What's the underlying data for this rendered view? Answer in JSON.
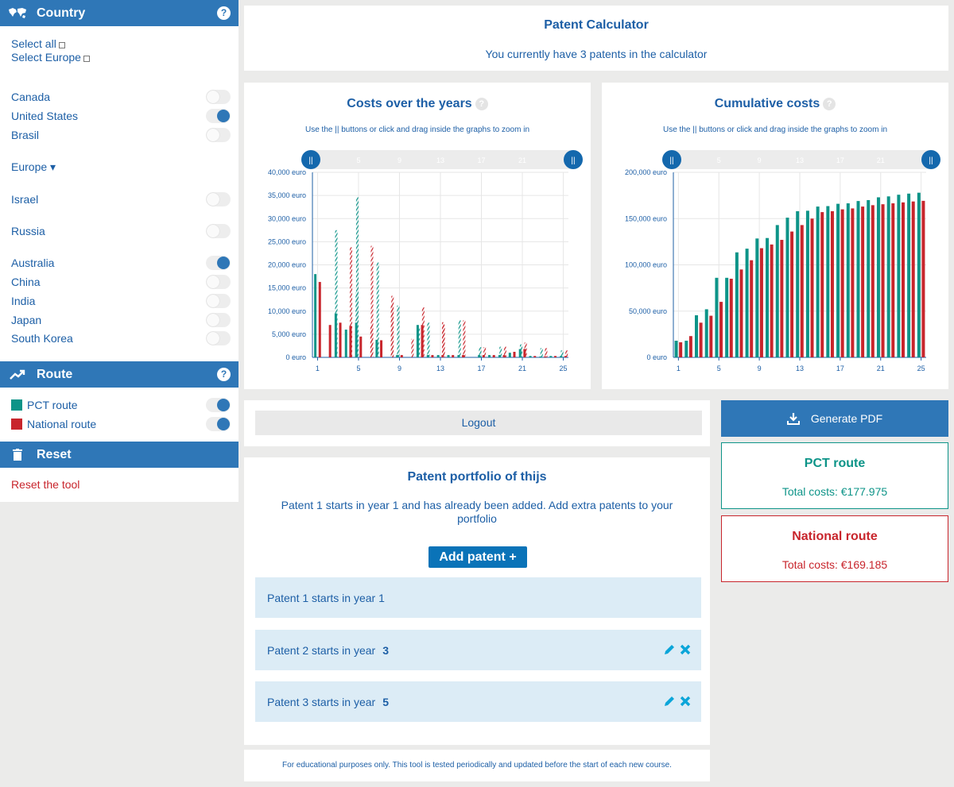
{
  "colors": {
    "accent": "#2f77b7",
    "pct": "#0d9488",
    "national": "#c8252c"
  },
  "sidebar": {
    "country_header": "Country",
    "select_all": "Select all",
    "select_europe": "Select Europe",
    "countries_a": [
      {
        "label": "Canada",
        "on": false
      },
      {
        "label": "United States",
        "on": true
      },
      {
        "label": "Brasil",
        "on": false
      }
    ],
    "europe": "Europe ▾",
    "israel": {
      "label": "Israel",
      "on": false
    },
    "russia": {
      "label": "Russia",
      "on": false
    },
    "countries_b": [
      {
        "label": "Australia",
        "on": true
      },
      {
        "label": "China",
        "on": false
      },
      {
        "label": "India",
        "on": false
      },
      {
        "label": "Japan",
        "on": false
      },
      {
        "label": "South Korea",
        "on": false
      }
    ],
    "route_header": "Route",
    "pct_route": "PCT route",
    "national_route": "National route",
    "reset_header": "Reset",
    "reset_link": "Reset the tool",
    "help": "?"
  },
  "header": {
    "title": "Patent Calculator",
    "subtitle": "You currently have 3 patents in the calculator"
  },
  "charts": {
    "hint": "Use the || buttons or click and drag inside the graphs to zoom in",
    "handle": "||"
  },
  "chart_data": [
    {
      "type": "bar",
      "title": "Costs over the years",
      "ylabel_unit": "euro",
      "ylim": [
        0,
        40000
      ],
      "y_ticks": [
        "0 euro",
        "5,000 euro",
        "10,000 euro",
        "15,000 euro",
        "20,000 euro",
        "25,000 euro",
        "30,000 euro",
        "35,000 euro",
        "40,000 euro"
      ],
      "x_ticks": [
        "1",
        "5",
        "9",
        "13",
        "17",
        "21",
        "25"
      ],
      "slider_ticks": [
        "5",
        "9",
        "13",
        "17",
        "21"
      ],
      "x": [
        1,
        2,
        3,
        4,
        5,
        6,
        7,
        8,
        9,
        10,
        11,
        12,
        13,
        14,
        15,
        16,
        17,
        18,
        19,
        20,
        21,
        22,
        23,
        24,
        25
      ],
      "series": [
        {
          "name": "PCT route",
          "values": [
            18000,
            0,
            9500,
            6000,
            7500,
            0,
            3800,
            0,
            500,
            0,
            7000,
            500,
            500,
            500,
            500,
            0,
            500,
            500,
            500,
            1000,
            1800,
            300,
            200,
            300,
            300
          ]
        },
        {
          "name": "National route",
          "values": [
            16300,
            7000,
            7500,
            6800,
            4500,
            0,
            3700,
            0,
            500,
            0,
            7000,
            500,
            500,
            500,
            500,
            0,
            500,
            500,
            500,
            1200,
            1800,
            300,
            200,
            300,
            300
          ]
        },
        {
          "name": "PCT route (patent 2)",
          "values": [
            0,
            0,
            27500,
            0,
            14000,
            0,
            0,
            0,
            0,
            0,
            0,
            7500,
            0,
            0,
            0,
            0,
            0,
            0,
            0,
            0,
            0,
            0,
            0,
            0,
            0
          ]
        },
        {
          "name": "National route (patent 2)",
          "values": [
            0,
            0,
            0,
            23800,
            0,
            6800,
            0,
            11200,
            0,
            4000,
            0,
            0,
            7600,
            0,
            0,
            0,
            0,
            0,
            0,
            0,
            0,
            0,
            0,
            0,
            0
          ]
        },
        {
          "name": "PCT route (patent 3)",
          "values": [
            0,
            0,
            0,
            0,
            34600,
            0,
            20500,
            0,
            11200,
            0,
            6500,
            0,
            0,
            0,
            8000,
            0,
            2200,
            0,
            2300,
            0,
            2800,
            0,
            2000,
            0,
            1500
          ]
        },
        {
          "name": "National route (patent 3)",
          "values": [
            0,
            0,
            0,
            0,
            0,
            24100,
            0,
            13300,
            0,
            0,
            10800,
            0,
            7000,
            0,
            8000,
            0,
            2200,
            0,
            2300,
            0,
            3200,
            0,
            2000,
            0,
            1500
          ]
        }
      ]
    },
    {
      "type": "bar",
      "title": "Cumulative costs",
      "ylabel_unit": "euro",
      "ylim": [
        0,
        200000
      ],
      "y_ticks": [
        "0 euro",
        "50,000 euro",
        "100,000 euro",
        "150,000 euro",
        "200,000 euro"
      ],
      "x_ticks": [
        "1",
        "5",
        "9",
        "13",
        "17",
        "21",
        "25"
      ],
      "slider_ticks": [
        "5",
        "9",
        "13",
        "17",
        "21"
      ],
      "x": [
        1,
        2,
        3,
        4,
        5,
        6,
        7,
        8,
        9,
        10,
        11,
        12,
        13,
        14,
        15,
        16,
        17,
        18,
        19,
        20,
        21,
        22,
        23,
        24,
        25
      ],
      "series": [
        {
          "name": "PCT route",
          "values": [
            18000,
            18000,
            45500,
            52000,
            86000,
            86000,
            113500,
            117500,
            128500,
            129000,
            143000,
            151000,
            158000,
            158500,
            163000,
            163500,
            166000,
            166500,
            169000,
            170000,
            173000,
            174000,
            175800,
            177000,
            177975
          ]
        },
        {
          "name": "National route",
          "values": [
            16300,
            23000,
            37500,
            45000,
            60000,
            85000,
            95000,
            105000,
            118000,
            122000,
            127000,
            136000,
            143000,
            150000,
            157000,
            158000,
            160000,
            161000,
            163000,
            164500,
            165500,
            166500,
            167500,
            168500,
            169185
          ]
        }
      ]
    }
  ],
  "logout": "Logout",
  "portfolio": {
    "title": "Patent portfolio of thijs",
    "desc": "Patent 1 starts in year 1 and has already been added. Add extra patents to your portfolio",
    "add_button": "Add patent +",
    "items": [
      {
        "label": "Patent 1 starts in year 1",
        "year": ""
      },
      {
        "label": "Patent 2 starts in year",
        "year": "3"
      },
      {
        "label": "Patent 3 starts in year",
        "year": "5"
      }
    ]
  },
  "generate_pdf": "Generate PDF",
  "pct_box": {
    "title": "PCT route",
    "total": "Total costs: €177.975"
  },
  "national_box": {
    "title": "National route",
    "total": "Total costs: €169.185"
  },
  "footer": "For educational purposes only. This tool is tested periodically and updated before the start of each new course."
}
